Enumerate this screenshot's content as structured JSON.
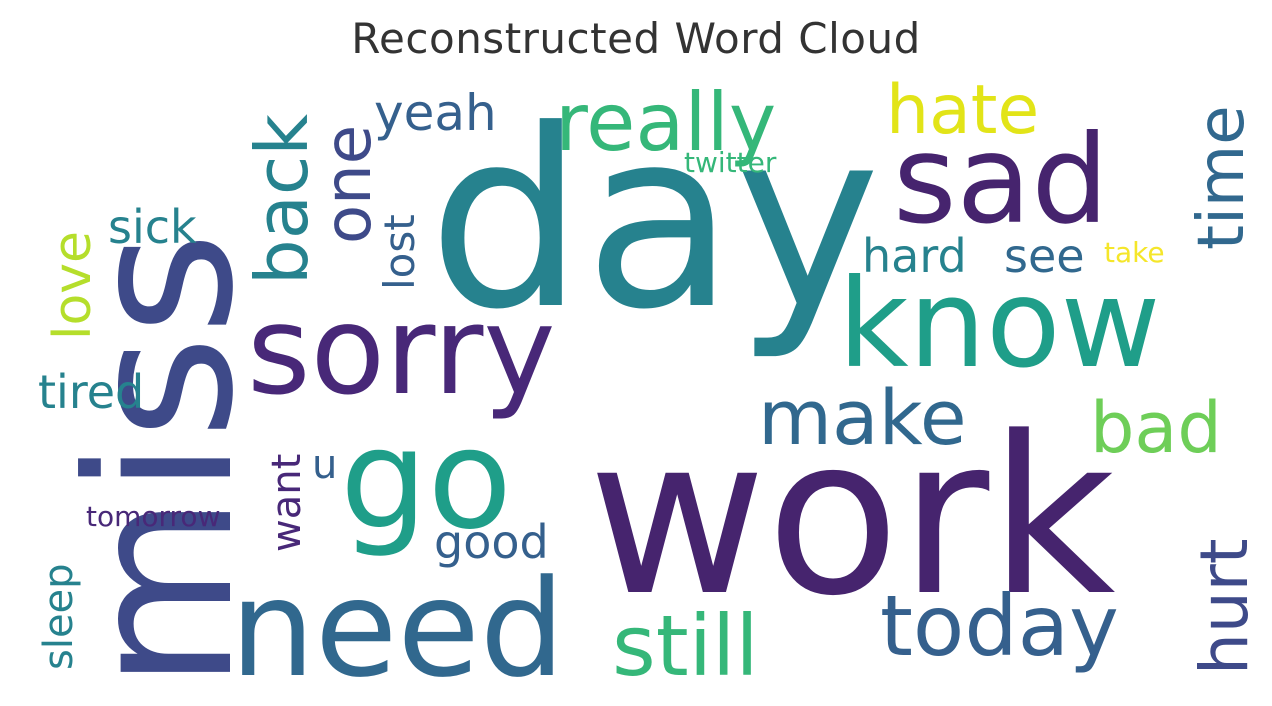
{
  "title": "Reconstructed Word Cloud",
  "palette": {
    "deep_purple": "#46246e",
    "purple": "#482878",
    "indigo": "#3e4a89",
    "blue": "#31688e",
    "steel_blue": "#35608d",
    "teal": "#26828e",
    "teal_green": "#1f9e89",
    "green": "#35b779",
    "light_green": "#6ece58",
    "yellow_green": "#b5de2b",
    "yellow": "#e2e418",
    "bright_yellow": "#f5e62a"
  },
  "words": [
    {
      "text": "day",
      "orient": "horizontal",
      "color": "#26828e"
    },
    {
      "text": "work",
      "orient": "horizontal",
      "color": "#46246e"
    },
    {
      "text": "miss",
      "orient": "vertical",
      "color": "#3e4a89"
    },
    {
      "text": "sorry",
      "orient": "horizontal",
      "color": "#482878"
    },
    {
      "text": "need",
      "orient": "horizontal",
      "color": "#31688e"
    },
    {
      "text": "know",
      "orient": "horizontal",
      "color": "#1f9e89"
    },
    {
      "text": "sad",
      "orient": "horizontal",
      "color": "#46246e"
    },
    {
      "text": "go",
      "orient": "horizontal",
      "color": "#1f9e89"
    },
    {
      "text": "really",
      "orient": "horizontal",
      "color": "#35b779"
    },
    {
      "text": "today",
      "orient": "horizontal",
      "color": "#35608d"
    },
    {
      "text": "still",
      "orient": "horizontal",
      "color": "#35b779"
    },
    {
      "text": "hate",
      "orient": "horizontal",
      "color": "#e2e418"
    },
    {
      "text": "make",
      "orient": "horizontal",
      "color": "#31688e"
    },
    {
      "text": "back",
      "orient": "vertical",
      "color": "#26828e"
    },
    {
      "text": "one",
      "orient": "vertical",
      "color": "#3e4a89"
    },
    {
      "text": "time",
      "orient": "vertical",
      "color": "#31688e"
    },
    {
      "text": "hurt",
      "orient": "vertical",
      "color": "#3e4a89"
    },
    {
      "text": "bad",
      "orient": "horizontal",
      "color": "#6ece58"
    },
    {
      "text": "love",
      "orient": "vertical",
      "color": "#b5de2b"
    },
    {
      "text": "yeah",
      "orient": "horizontal",
      "color": "#35608d"
    },
    {
      "text": "tired",
      "orient": "horizontal",
      "color": "#26828e"
    },
    {
      "text": "sick",
      "orient": "horizontal",
      "color": "#26828e"
    },
    {
      "text": "hard",
      "orient": "horizontal",
      "color": "#26828e"
    },
    {
      "text": "see",
      "orient": "horizontal",
      "color": "#31688e"
    },
    {
      "text": "lost",
      "orient": "vertical",
      "color": "#35608d"
    },
    {
      "text": "good",
      "orient": "horizontal",
      "color": "#35608d"
    },
    {
      "text": "want",
      "orient": "vertical",
      "color": "#482878"
    },
    {
      "text": "sleep",
      "orient": "vertical",
      "color": "#26828e"
    },
    {
      "text": "u",
      "orient": "horizontal",
      "color": "#35608d"
    },
    {
      "text": "tomorrow",
      "orient": "horizontal",
      "color": "#482878"
    },
    {
      "text": "twitter",
      "orient": "horizontal",
      "color": "#35b779"
    },
    {
      "text": "take",
      "orient": "horizontal",
      "color": "#f5e62a"
    }
  ]
}
